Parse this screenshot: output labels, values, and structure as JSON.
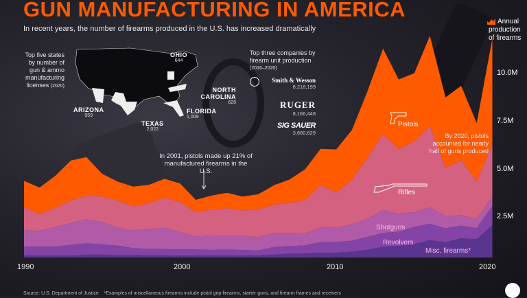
{
  "header": {
    "title": "GUN MANUFACTURING IN AMERICA",
    "subtitle": "In recent years, the number of firearms produced in the U.S. has increased dramatically"
  },
  "legend": {
    "label": "Annual production of firearms",
    "color": "#ff5a00"
  },
  "states_panel": {
    "heading": "Top five states by number of gun & ammo manufacturing licenses",
    "year": "(2020)",
    "states": [
      {
        "name": "OHIO",
        "value": "644"
      },
      {
        "name": "NORTH CAROLINA",
        "value": "628"
      },
      {
        "name": "FLORIDA",
        "value": "1,009"
      },
      {
        "name": "TEXAS",
        "value": "2,022"
      },
      {
        "name": "ARIZONA",
        "value": "959"
      }
    ]
  },
  "companies_panel": {
    "heading": "Top three companies by firearm unit production",
    "years": "(2016–2020)",
    "companies": [
      {
        "name": "Smith & Wesson",
        "value": "8,218,199"
      },
      {
        "name": "RUGER",
        "value": "8,166,448"
      },
      {
        "name": "SIG SAUER",
        "value": "3,660,629"
      }
    ]
  },
  "annotations": {
    "pistols_2001": "In 2001, pistols made up 21% of manufactured firearms in the U.S.",
    "pistols_2020": "By 2020, pistols accounted for nearly half of guns produced"
  },
  "footer": {
    "source": "Source: U.S. Department of Justice",
    "note": "*Examples of miscellaneous firearms include pistol grip firearms, starter guns, and firearm frames and receivers"
  },
  "chart_data": {
    "type": "area",
    "stacked": true,
    "title": "GUN MANUFACTURING IN AMERICA",
    "x": [
      1990,
      1991,
      1992,
      1993,
      1994,
      1995,
      1996,
      1997,
      1998,
      1999,
      2000,
      2001,
      2002,
      2003,
      2004,
      2005,
      2006,
      2007,
      2008,
      2009,
      2010,
      2011,
      2012,
      2013,
      2014,
      2015,
      2016,
      2017,
      2018,
      2019,
      2020
    ],
    "xticks": [
      "1990",
      "2000",
      "2010",
      "2020"
    ],
    "yticks": [
      "2.5M",
      "5.0M",
      "7.5M",
      "10.0M"
    ],
    "ylim": [
      0,
      12
    ],
    "unit": "millions",
    "series": [
      {
        "name": "Misc. firearms*",
        "color": "#5a3590",
        "values": [
          0.1,
          0.1,
          0.1,
          0.1,
          0.15,
          0.15,
          0.12,
          0.12,
          0.12,
          0.1,
          0.1,
          0.1,
          0.1,
          0.1,
          0.1,
          0.1,
          0.15,
          0.2,
          0.2,
          0.25,
          0.25,
          0.3,
          0.4,
          0.55,
          0.6,
          0.7,
          0.9,
          0.8,
          1.0,
          0.95,
          1.7
        ]
      },
      {
        "name": "Revolvers",
        "color": "#8444a6",
        "values": [
          0.47,
          0.46,
          0.47,
          0.56,
          0.59,
          0.53,
          0.5,
          0.37,
          0.32,
          0.34,
          0.32,
          0.32,
          0.29,
          0.31,
          0.29,
          0.27,
          0.39,
          0.39,
          0.43,
          0.55,
          0.56,
          0.57,
          0.67,
          0.73,
          0.74,
          0.89,
          0.86,
          0.72,
          0.66,
          0.58,
          0.99
        ]
      },
      {
        "name": "Shotguns",
        "color": "#b05aa8",
        "values": [
          0.85,
          0.83,
          1.02,
          1.14,
          1.25,
          1.17,
          0.93,
          0.92,
          1.04,
          1.11,
          0.9,
          0.68,
          0.74,
          0.73,
          0.73,
          0.7,
          0.71,
          0.65,
          0.63,
          0.75,
          0.74,
          0.86,
          0.95,
          1.2,
          0.94,
          0.78,
          0.85,
          0.65,
          0.54,
          0.48,
          0.48
        ]
      },
      {
        "name": "Rifles",
        "color": "#d3617f",
        "values": [
          1.21,
          0.88,
          1.0,
          1.17,
          1.25,
          1.33,
          1.42,
          1.25,
          1.35,
          1.57,
          1.58,
          1.28,
          1.36,
          1.43,
          1.33,
          1.43,
          1.5,
          1.61,
          1.73,
          2.25,
          1.83,
          2.32,
          3.17,
          3.98,
          3.38,
          3.69,
          4.24,
          2.5,
          2.88,
          1.96,
          2.76
        ]
      },
      {
        "name": "Pistols",
        "color": "#ff5a00",
        "values": [
          1.37,
          1.38,
          1.67,
          2.09,
          2.0,
          1.19,
          0.99,
          1.04,
          0.96,
          0.99,
          0.96,
          0.63,
          0.74,
          0.81,
          0.73,
          0.8,
          1.02,
          1.22,
          1.61,
          1.87,
          2.26,
          2.6,
          3.49,
          4.44,
          3.63,
          3.56,
          4.72,
          3.69,
          3.88,
          3.05,
          5.51
        ]
      }
    ]
  }
}
